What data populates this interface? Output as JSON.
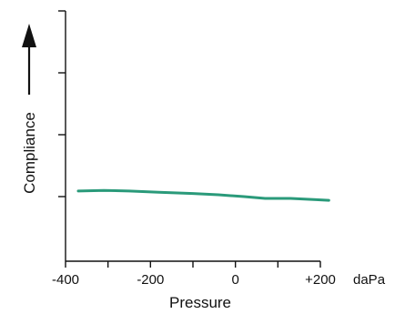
{
  "chart_data": {
    "type": "line",
    "title": "",
    "xlabel": "Pressure",
    "ylabel": "Compliance",
    "x_unit": "daPa",
    "xlim": [
      -400,
      200
    ],
    "x_ticks": [
      -400,
      -300,
      -200,
      -100,
      0,
      100,
      200
    ],
    "x_tick_labels": [
      {
        "value": -400,
        "label": "-400"
      },
      {
        "value": -200,
        "label": "-200"
      },
      {
        "value": 0,
        "label": "0"
      },
      {
        "value": 200,
        "label": "+200"
      }
    ],
    "y_ticks": 4,
    "y_tick_labels": [],
    "grid": false,
    "legend": "none",
    "series": [
      {
        "color": "#2a9a7a",
        "x": [
          -370,
          -310,
          -250,
          -180,
          -100,
          -40,
          20,
          70,
          130,
          190,
          220
        ],
        "y": [
          0.09,
          0.1,
          0.09,
          0.07,
          0.05,
          0.03,
          0.0,
          -0.03,
          -0.03,
          -0.05,
          -0.06
        ]
      }
    ]
  }
}
